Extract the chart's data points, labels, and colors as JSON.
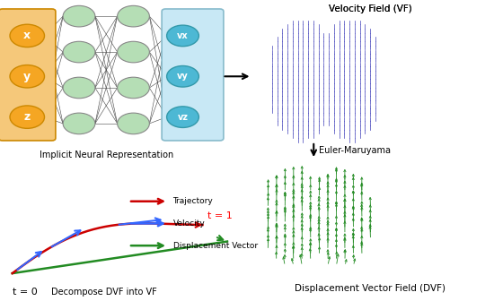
{
  "neuron_color_hidden": "#b5deb5",
  "neuron_color_input": "#f5a623",
  "neuron_color_output": "#4db8d4",
  "input_box_color": "#f5c87a",
  "output_box_color": "#c8e8f5",
  "connection_color": "#555555",
  "vf_color": "#4444bb",
  "dvf_color": "#228B22",
  "trajectory_color": "#cc0000",
  "velocity_color": "#3366ff",
  "displacement_color": "#228B22",
  "label_inr": "Implicit Neural Representation",
  "label_dvf_vf": "Decompose DVF into VF",
  "label_vf": "Velocity Field (VF)",
  "label_dvf": "Displacement Vector Field (DVF)",
  "label_euler": "Euler-Maruyama",
  "label_t0": "t = 0",
  "label_t1": "t = 1",
  "legend_items": [
    "Trajectory",
    "Velocity",
    "Displacement Vector"
  ],
  "input_labels": [
    "x",
    "y",
    "z"
  ],
  "output_labels": [
    "vx",
    "vy",
    "vz"
  ]
}
